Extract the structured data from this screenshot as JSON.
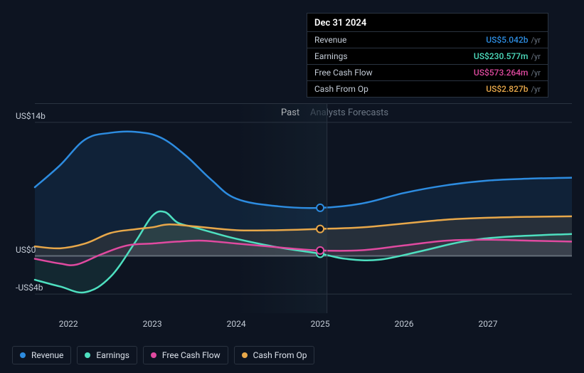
{
  "chart": {
    "type": "line",
    "background_color": "#0d1421",
    "grid_color": "#2a3340",
    "zero_line_color": "#5a6370",
    "past_shade": {
      "from_x_ratio": 0.374,
      "to_x_ratio": 0.544,
      "color": "#15222f",
      "opacity": 0.6
    },
    "divider_x_ratio": 0.544,
    "x_axis": {
      "min_year": 2021.6,
      "max_year": 2028,
      "ticks": [
        2022,
        2023,
        2024,
        2025,
        2026,
        2027
      ],
      "tick_labels": [
        "2022",
        "2023",
        "2024",
        "2025",
        "2026",
        "2027"
      ]
    },
    "y_axis": {
      "min_val": -6,
      "max_val": 16,
      "ticks": [
        -4,
        0,
        14
      ],
      "tick_labels": [
        "-US$4b",
        "US$0",
        "US$14b"
      ],
      "label_fontsize": 12,
      "label_color": "#c3cbd6"
    },
    "section_labels": {
      "past": "Past",
      "forecast": "Analysts Forecasts",
      "past_color": "#ffffff",
      "forecast_color": "#6b7684"
    },
    "series": [
      {
        "id": "revenue",
        "name": "Revenue",
        "color": "#2d8ce0",
        "fill_opacity": 0.12,
        "line_width": 2.5,
        "points": [
          {
            "x": 2021.6,
            "y": 7.2
          },
          {
            "x": 2021.9,
            "y": 9.5
          },
          {
            "x": 2022.2,
            "y": 12.2
          },
          {
            "x": 2022.5,
            "y": 12.9
          },
          {
            "x": 2022.8,
            "y": 13.0
          },
          {
            "x": 2023.1,
            "y": 12.4
          },
          {
            "x": 2023.4,
            "y": 10.5
          },
          {
            "x": 2023.7,
            "y": 8.0
          },
          {
            "x": 2024.0,
            "y": 6.0
          },
          {
            "x": 2024.5,
            "y": 5.2
          },
          {
            "x": 2025.0,
            "y": 5.042
          },
          {
            "x": 2025.5,
            "y": 5.5
          },
          {
            "x": 2026.0,
            "y": 6.6
          },
          {
            "x": 2026.5,
            "y": 7.4
          },
          {
            "x": 2027.0,
            "y": 7.9
          },
          {
            "x": 2027.5,
            "y": 8.1
          },
          {
            "x": 2028.0,
            "y": 8.2
          }
        ],
        "marker": {
          "x": 2025.0,
          "y": 5.042
        }
      },
      {
        "id": "earnings",
        "name": "Earnings",
        "color": "#4ee0c0",
        "fill_opacity": 0.1,
        "line_width": 2.5,
        "points": [
          {
            "x": 2021.6,
            "y": -2.5
          },
          {
            "x": 2021.9,
            "y": -3.2
          },
          {
            "x": 2022.2,
            "y": -3.8
          },
          {
            "x": 2022.5,
            "y": -2.2
          },
          {
            "x": 2022.8,
            "y": 1.5
          },
          {
            "x": 2023.0,
            "y": 4.2
          },
          {
            "x": 2023.15,
            "y": 4.6
          },
          {
            "x": 2023.3,
            "y": 3.5
          },
          {
            "x": 2023.5,
            "y": 3.0
          },
          {
            "x": 2023.7,
            "y": 2.5
          },
          {
            "x": 2024.0,
            "y": 1.8
          },
          {
            "x": 2024.5,
            "y": 0.9
          },
          {
            "x": 2025.0,
            "y": 0.231
          },
          {
            "x": 2025.3,
            "y": -0.3
          },
          {
            "x": 2025.7,
            "y": -0.4
          },
          {
            "x": 2026.2,
            "y": 0.5
          },
          {
            "x": 2026.7,
            "y": 1.5
          },
          {
            "x": 2027.2,
            "y": 2.0
          },
          {
            "x": 2028.0,
            "y": 2.3
          }
        ],
        "marker": {
          "x": 2025.0,
          "y": 0.231
        }
      },
      {
        "id": "fcf",
        "name": "Free Cash Flow",
        "color": "#e04aa0",
        "fill_opacity": 0.08,
        "line_width": 2.5,
        "points": [
          {
            "x": 2021.6,
            "y": -0.3
          },
          {
            "x": 2021.9,
            "y": -0.8
          },
          {
            "x": 2022.1,
            "y": -0.9
          },
          {
            "x": 2022.4,
            "y": 0.2
          },
          {
            "x": 2022.7,
            "y": 1.1
          },
          {
            "x": 2023.0,
            "y": 1.3
          },
          {
            "x": 2023.3,
            "y": 1.5
          },
          {
            "x": 2023.6,
            "y": 1.6
          },
          {
            "x": 2024.0,
            "y": 1.3
          },
          {
            "x": 2024.5,
            "y": 0.9
          },
          {
            "x": 2025.0,
            "y": 0.573
          },
          {
            "x": 2025.5,
            "y": 0.6
          },
          {
            "x": 2026.0,
            "y": 1.1
          },
          {
            "x": 2026.5,
            "y": 1.6
          },
          {
            "x": 2027.0,
            "y": 1.7
          },
          {
            "x": 2027.5,
            "y": 1.6
          },
          {
            "x": 2028.0,
            "y": 1.5
          }
        ],
        "marker": {
          "x": 2025.0,
          "y": 0.573
        }
      },
      {
        "id": "cfo",
        "name": "Cash From Op",
        "color": "#e8a84a",
        "fill_opacity": 0.1,
        "line_width": 2.5,
        "points": [
          {
            "x": 2021.6,
            "y": 1.0
          },
          {
            "x": 2021.9,
            "y": 0.8
          },
          {
            "x": 2022.2,
            "y": 1.3
          },
          {
            "x": 2022.5,
            "y": 2.4
          },
          {
            "x": 2022.8,
            "y": 2.8
          },
          {
            "x": 2023.0,
            "y": 3.0
          },
          {
            "x": 2023.2,
            "y": 3.3
          },
          {
            "x": 2023.5,
            "y": 3.1
          },
          {
            "x": 2024.0,
            "y": 2.7
          },
          {
            "x": 2024.5,
            "y": 2.7
          },
          {
            "x": 2025.0,
            "y": 2.827
          },
          {
            "x": 2025.5,
            "y": 3.0
          },
          {
            "x": 2026.0,
            "y": 3.4
          },
          {
            "x": 2026.5,
            "y": 3.8
          },
          {
            "x": 2027.0,
            "y": 4.0
          },
          {
            "x": 2027.5,
            "y": 4.1
          },
          {
            "x": 2028.0,
            "y": 4.15
          }
        ],
        "marker": {
          "x": 2025.0,
          "y": 2.827
        }
      }
    ],
    "tooltip": {
      "title": "Dec 31 2024",
      "rows": [
        {
          "label": "Revenue",
          "value": "US$5.042b",
          "unit": "/yr",
          "color": "#2d8ce0"
        },
        {
          "label": "Earnings",
          "value": "US$230.577m",
          "unit": "/yr",
          "color": "#4ee0c0"
        },
        {
          "label": "Free Cash Flow",
          "value": "US$573.264m",
          "unit": "/yr",
          "color": "#e04aa0"
        },
        {
          "label": "Cash From Op",
          "value": "US$2.827b",
          "unit": "/yr",
          "color": "#e8a84a"
        }
      ]
    },
    "legend": {
      "items": [
        {
          "label": "Revenue",
          "color": "#2d8ce0"
        },
        {
          "label": "Earnings",
          "color": "#4ee0c0"
        },
        {
          "label": "Free Cash Flow",
          "color": "#e04aa0"
        },
        {
          "label": "Cash From Op",
          "color": "#e8a84a"
        }
      ]
    }
  }
}
